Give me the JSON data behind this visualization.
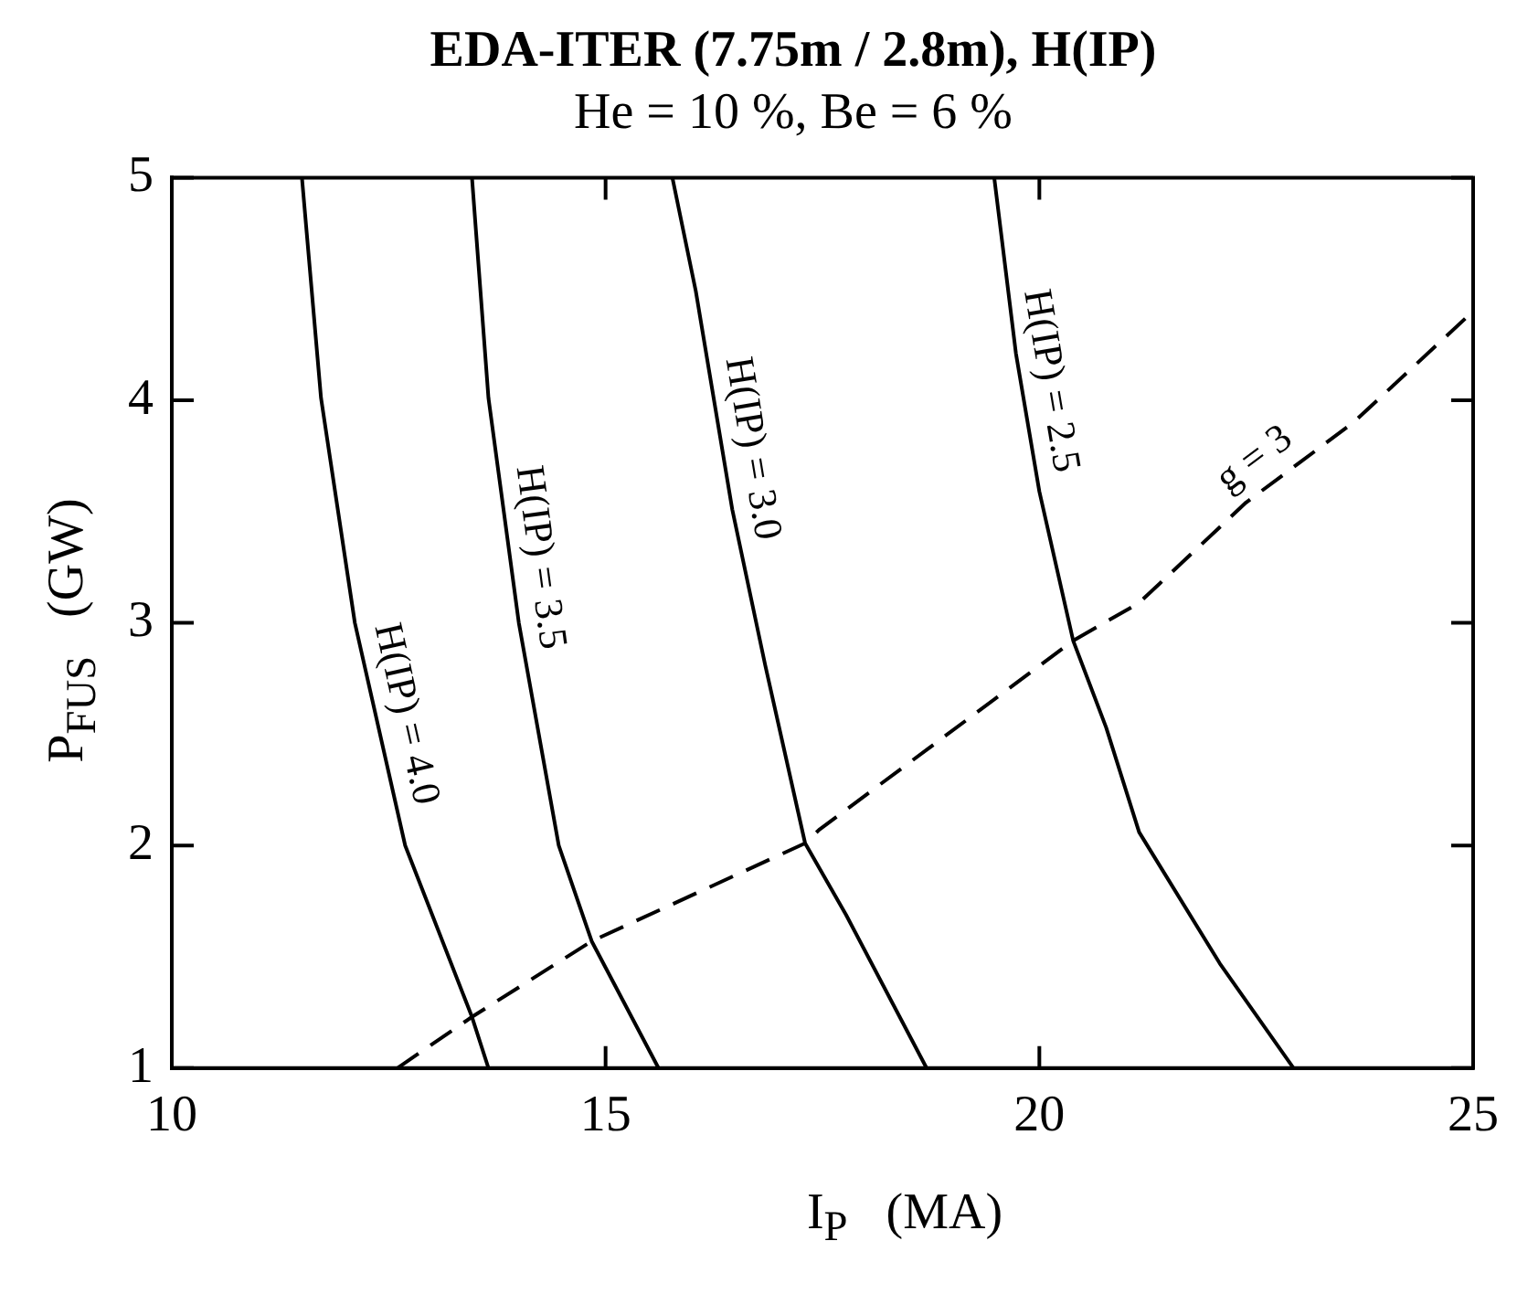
{
  "chart_data": {
    "type": "line",
    "title": "EDA-ITER (7.75m / 2.8m), H(IP)",
    "subtitle": "He = 10 %, Be = 6 %",
    "xlabel": "I$_{P}$   (MA)",
    "ylabel": "P$_{FUS}$   (GW)",
    "xlim": [
      10,
      25
    ],
    "xticks": [
      10,
      15,
      20,
      25
    ],
    "ylim": [
      1,
      5
    ],
    "yticks": [
      1,
      2,
      3,
      4,
      5
    ],
    "grid": false,
    "legend": false,
    "marker": "none",
    "series": [
      {
        "name": "H(IP) = 4.0",
        "color": "#000000",
        "line_style": "solid",
        "x": [
          11.5,
          11.72,
          12.11,
          12.69,
          13.46,
          13.65
        ],
        "values": [
          5,
          4.01,
          3.0,
          2.0,
          1.23,
          1.0
        ]
      },
      {
        "name": "H(IP) = 3.5",
        "color": "#000000",
        "line_style": "solid",
        "x": [
          13.46,
          13.65,
          14.0,
          14.46,
          14.84,
          15.61
        ],
        "values": [
          5,
          4.01,
          3.0,
          2.0,
          1.57,
          1.0
        ]
      },
      {
        "name": "H(IP) = 3.0",
        "color": "#000000",
        "line_style": "solid",
        "x": [
          15.77,
          16.04,
          16.46,
          16.84,
          17.3,
          17.77,
          18.7
        ],
        "values": [
          5,
          4.49,
          3.51,
          2.81,
          2.01,
          1.69,
          1.0
        ]
      },
      {
        "name": "H(IP) = 2.5",
        "color": "#000000",
        "line_style": "solid",
        "x": [
          19.48,
          19.73,
          20.0,
          20.39,
          20.77,
          21.15,
          22.08,
          22.93
        ],
        "values": [
          5,
          4.21,
          3.59,
          2.92,
          2.53,
          2.06,
          1.47,
          1.0
        ]
      },
      {
        "name": "g = 3",
        "color": "#000000",
        "line_style": "dashed",
        "x": [
          12.6,
          13.46,
          14.84,
          17.3,
          17.46,
          20.39,
          21.15,
          22.38,
          23.62,
          25
        ],
        "values": [
          1.0,
          1.23,
          1.57,
          2.01,
          2.07,
          2.92,
          3.09,
          3.54,
          3.9,
          4.4
        ]
      }
    ]
  }
}
